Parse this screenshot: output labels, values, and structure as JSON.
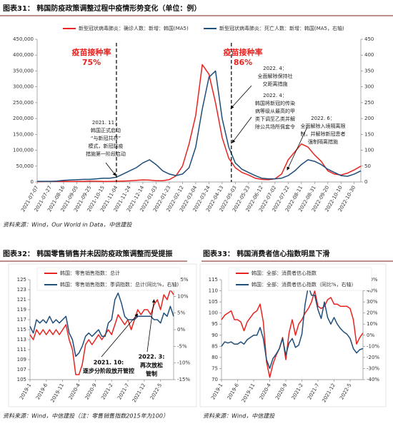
{
  "chart_data": [
    {
      "type": "line",
      "title": "图表31：  韩国防疫政策调整过程中疫情形势变化（单位：例）",
      "source": "资料来源：Wind，Our World in Data，中信建投",
      "categories": [
        "2021-07-07",
        null,
        "2021-07-27",
        null,
        "2021-08-16",
        null,
        "2021-09-05",
        null,
        "2021-09-25",
        null,
        "2021-10-15",
        null,
        "2021-11-04",
        null,
        "2021-11-24",
        null,
        "2021-12-14",
        null,
        "2022-01-03",
        null,
        "2022-01-23",
        null,
        "2022-02-12",
        null,
        "2022-03-04",
        null,
        "2022-03-24",
        null,
        "2022-04-13",
        null,
        "2022-05-03",
        null,
        "2022-05-23",
        null,
        "2022-06-12",
        null,
        "2022-07-02",
        null,
        "2022-07-22",
        null,
        "2022-08-11",
        null,
        "2022-08-31",
        null,
        "2022-09-20",
        null,
        "2022-10-10",
        null,
        "2022-10-30",
        null
      ],
      "series": [
        {
          "name": "新型冠状病毒肺炎：确诊人数：新增：韩国(MA5)",
          "color": "#e8231f",
          "values": [
            1000,
            1400,
            1500,
            1700,
            1800,
            1800,
            1700,
            1800,
            2600,
            2300,
            1600,
            1600,
            2300,
            2600,
            3700,
            5000,
            6500,
            5800,
            3900,
            3800,
            7500,
            19000,
            50000,
            120000,
            210000,
            370000,
            340000,
            250000,
            140000,
            75000,
            45000,
            30000,
            22000,
            12000,
            8000,
            7000,
            10000,
            25000,
            70000,
            95000,
            120000,
            110000,
            85000,
            65000,
            35000,
            25000,
            22000,
            28000,
            38000,
            50000
          ]
        },
        {
          "name": "新型冠状病毒肺炎：死亡人数：新增：韩国(MA5，右轴)",
          "color": "#1f4e79",
          "axis": "y2",
          "values": [
            2,
            2,
            2,
            3,
            5,
            6,
            7,
            8,
            8,
            10,
            12,
            12,
            15,
            25,
            35,
            45,
            60,
            70,
            55,
            35,
            25,
            20,
            25,
            45,
            110,
            230,
            330,
            350,
            200,
            110,
            60,
            40,
            30,
            20,
            12,
            10,
            10,
            12,
            20,
            35,
            55,
            70,
            65,
            55,
            40,
            30,
            20,
            18,
            25,
            35
          ]
        }
      ],
      "ylim": [
        0,
        450000
      ],
      "yticks": [
        0,
        {
          "value": 50000,
          "label": "50,000"
        },
        {
          "value": 100000,
          "label": "100,000"
        },
        {
          "value": 150000,
          "label": "150,000"
        },
        {
          "value": 200000,
          "label": "200,000"
        },
        {
          "value": 250000,
          "label": "250,000"
        },
        {
          "value": 300000,
          "label": "300,000"
        },
        {
          "value": 350000,
          "label": "350,000"
        },
        {
          "value": 400000,
          "label": "400,000"
        },
        {
          "value": 450000,
          "label": "450,000"
        }
      ],
      "y2lim": [
        0,
        450
      ],
      "y2ticks": [
        0,
        50,
        100,
        150,
        200,
        250,
        300,
        350,
        400,
        450
      ],
      "annotations": [
        {
          "lines": [
            "疫苗接种率",
            "75%"
          ],
          "color": "#e8231f"
        },
        {
          "lines": [
            "疫苗接种率",
            "86%"
          ],
          "color": "#e8231f"
        },
        {
          "lines": [
            "2021. 11：",
            "韩国正式启动",
            "“与新冠共存”",
            "模式，新冠防疫",
            "措施第一阶段启动"
          ],
          "color": "#222222"
        },
        {
          "lines": [
            "2022. 4：",
            "全面解除保持社",
            "交距离措施"
          ],
          "color": "#222222"
        },
        {
          "lines": [
            "2022. 4：",
            "韩国将新冠的传染",
            "病等级从最高的甲",
            "类下调至乙类并解",
            "除公共场所佩套令"
          ],
          "color": "#222222"
        },
        {
          "lines": [
            "2022. 6：",
            "全面解除入境隔离限",
            "制，并解除新冠患者",
            "强制隔离措施"
          ],
          "color": "#222222"
        }
      ]
    },
    {
      "type": "line",
      "title": "图表32：  韩国零售销售并未因防疫政策调整而受提振",
      "source": "资料来源：Wind，中信建投（注：零售销售指数2015年为100）",
      "categories": [
        "2019-1",
        null,
        null,
        null,
        null,
        "2019-6",
        null,
        null,
        null,
        null,
        "2019-11",
        null,
        null,
        null,
        null,
        "2020-4",
        null,
        null,
        null,
        null,
        "2020-9",
        null,
        null,
        null,
        null,
        "2021-2",
        null,
        null,
        null,
        null,
        "2021-7",
        null,
        null,
        null,
        null,
        "2021-12",
        null,
        null,
        null,
        null,
        "2022-5",
        null,
        null,
        null,
        null
      ],
      "series": [
        {
          "name": "韩国：零售销售指数：总计",
          "color": "#e8231f",
          "values": [
            114,
            113,
            115,
            114,
            115,
            114,
            115,
            114,
            115,
            114,
            115,
            116,
            113,
            111,
            106,
            106,
            108,
            112,
            113,
            112,
            113,
            114,
            113,
            114,
            115,
            114,
            116,
            118,
            117,
            116,
            117,
            115,
            117,
            119,
            118,
            119,
            119,
            118,
            120,
            121,
            119,
            122,
            121,
            123,
            122
          ]
        },
        {
          "name": "韩国：零售销售指数：季调指数：总计(同比%，右轴)",
          "color": "#1f4e79",
          "axis": "y2",
          "values": [
            1,
            -1,
            3,
            2,
            3,
            2,
            4,
            2,
            3,
            2,
            3,
            4,
            -1,
            -3,
            -8,
            -7,
            -5,
            -2,
            -1,
            -2,
            -1,
            0,
            -2,
            -2,
            2,
            3,
            9,
            11,
            8,
            4,
            3,
            3,
            3,
            4,
            4,
            4,
            4,
            4,
            3,
            3,
            2,
            5,
            4,
            7,
            4
          ]
        }
      ],
      "ylim": [
        105,
        125
      ],
      "yticks": [
        105,
        107,
        109,
        111,
        113,
        115,
        117,
        119,
        121,
        123,
        125
      ],
      "y2lim": [
        -15,
        15
      ],
      "y2ticks": [
        {
          "value": -15,
          "label": "-15%"
        },
        {
          "value": -10,
          "label": "-10%"
        },
        {
          "value": -5,
          "label": "-5%"
        },
        {
          "value": 0,
          "label": "0%"
        },
        {
          "value": 5,
          "label": "5%"
        },
        {
          "value": 10,
          "label": "10%"
        },
        {
          "value": 15,
          "label": "15%"
        }
      ],
      "annotations": [
        {
          "lines": [
            "2021. 10:",
            "逐步分阶段放开管控"
          ],
          "color": "#000000"
        },
        {
          "lines": [
            "2022. 3:",
            "再次放松",
            "管制"
          ],
          "color": "#000000"
        }
      ]
    },
    {
      "type": "line",
      "title": "图表33：  韩国消费者信心指数明显下滑",
      "source": "资料来源：Wind，中信建投",
      "categories": [
        "2019-1",
        null,
        null,
        null,
        null,
        "2019-6",
        null,
        null,
        null,
        null,
        "2019-11",
        null,
        null,
        null,
        null,
        "2020-4",
        null,
        null,
        null,
        null,
        "2020-9",
        null,
        null,
        null,
        null,
        "2021-2",
        null,
        null,
        null,
        null,
        "2021-7",
        null,
        null,
        null,
        null,
        "2021-12",
        null,
        null,
        null,
        null,
        "2022-5",
        null,
        null,
        null,
        null
      ],
      "series": [
        {
          "name": "韩国：全部：消费者信心指数",
          "color": "#e8231f",
          "values": [
            97,
            99,
            100,
            101,
            97,
            97,
            96,
            92,
            96,
            98,
            100,
            101,
            104,
            96,
            78,
            71,
            77,
            81,
            84,
            89,
            79,
            91,
            97,
            90,
            95,
            97,
            100,
            102,
            105,
            110,
            103,
            102,
            103,
            106,
            107,
            104,
            104,
            103,
            103,
            103,
            102,
            97,
            86,
            89,
            91
          ]
        },
        {
          "name": "韩国：全部：消费者信心指数（同比%，右轴）",
          "color": "#1f4e79",
          "axis": "y2",
          "values": [
            -10,
            -6,
            -7,
            -6,
            -8,
            -8,
            -6,
            -8,
            -4,
            -2,
            0,
            0,
            7,
            -3,
            -22,
            -30,
            -21,
            -17,
            -12,
            -3,
            -18,
            -7,
            -3,
            -11,
            -9,
            1,
            28,
            44,
            36,
            36,
            23,
            15,
            30,
            16,
            10,
            16,
            10,
            6,
            3,
            1,
            -3,
            -12,
            -16,
            -13,
            -12
          ]
        }
      ],
      "ylim": [
        70,
        115
      ],
      "yticks": [
        70,
        75,
        80,
        85,
        90,
        95,
        100,
        105,
        110,
        115
      ],
      "y2lim": [
        -40,
        50
      ],
      "y2ticks": [
        {
          "value": -40,
          "label": "-40%"
        },
        {
          "value": -30,
          "label": "-30%"
        },
        {
          "value": -20,
          "label": "-20%"
        },
        {
          "value": -10,
          "label": "-10%"
        },
        {
          "value": 0,
          "label": "0%"
        },
        {
          "value": 10,
          "label": "10%"
        },
        {
          "value": 20,
          "label": "20%"
        },
        {
          "value": 30,
          "label": "30%"
        },
        {
          "value": 40,
          "label": "40%"
        },
        {
          "value": 50,
          "label": "50%"
        }
      ],
      "annotations": []
    }
  ]
}
